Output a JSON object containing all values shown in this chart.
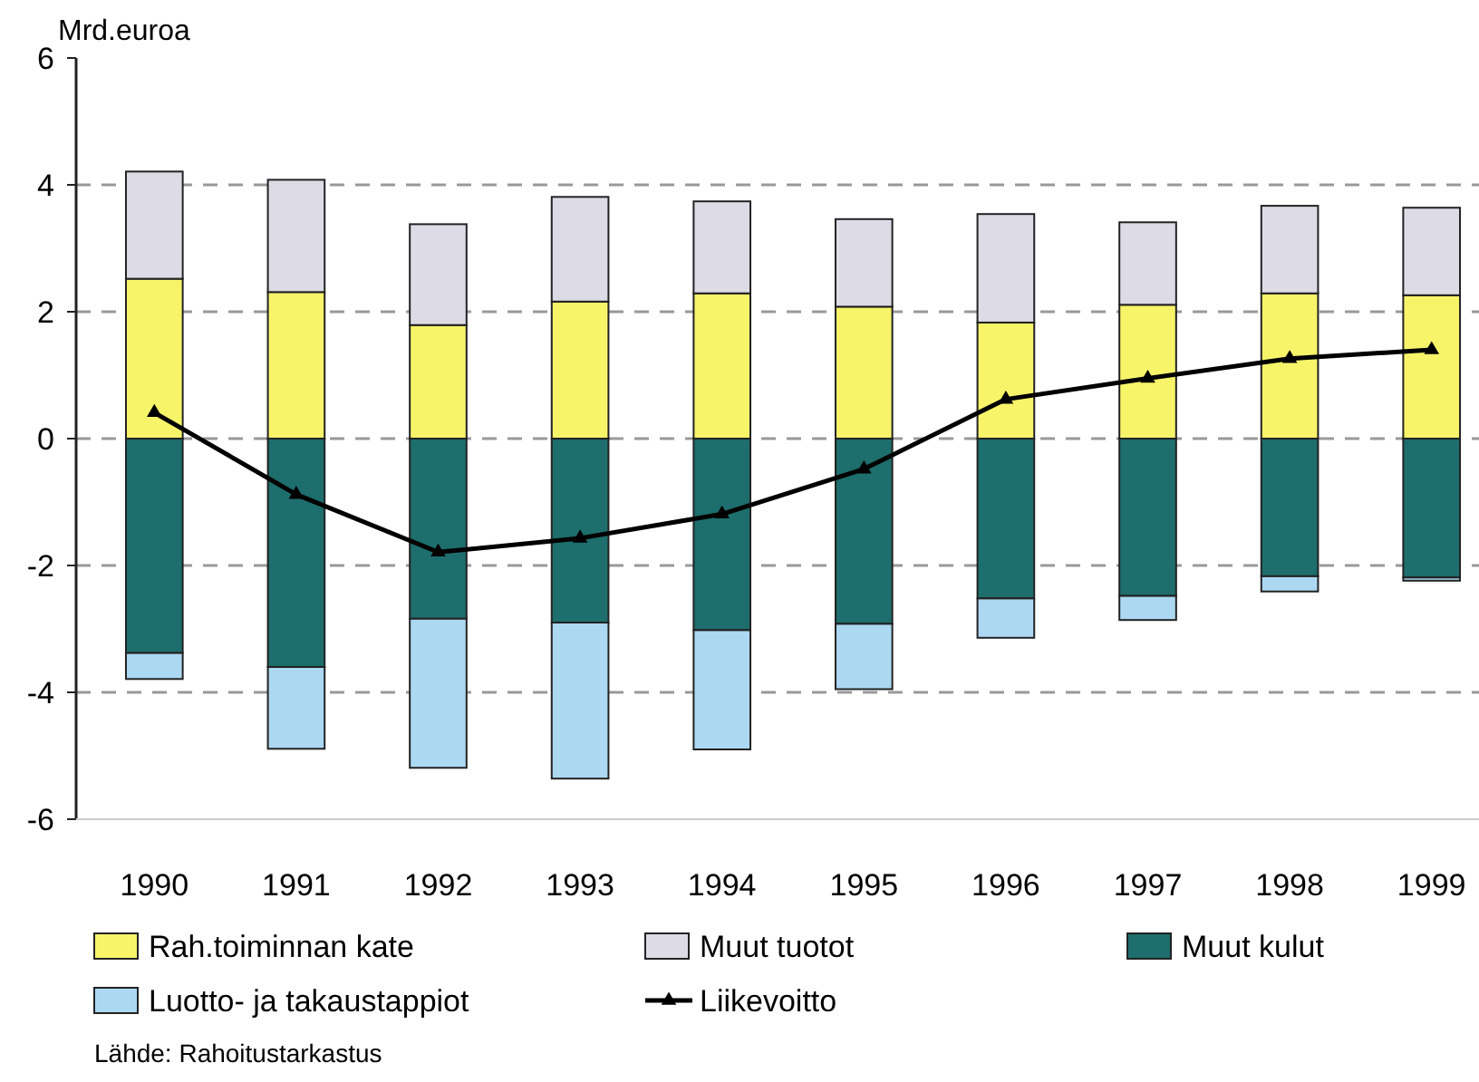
{
  "chart_data": {
    "type": "bar",
    "stacked": true,
    "ylabel": "Mrd.euroa",
    "categories": [
      "1990",
      "1991",
      "1992",
      "1993",
      "1994",
      "1995",
      "1996",
      "1997",
      "1998",
      "1999"
    ],
    "series": [
      {
        "name": "Rah.toiminnan kate",
        "color": "#f8f46a",
        "values": [
          2.52,
          2.31,
          1.79,
          2.16,
          2.29,
          2.08,
          1.83,
          2.11,
          2.29,
          2.26
        ]
      },
      {
        "name": "Muut tuotot",
        "color": "#dddce6",
        "values": [
          1.69,
          1.77,
          1.59,
          1.65,
          1.45,
          1.38,
          1.71,
          1.3,
          1.38,
          1.38
        ]
      },
      {
        "name": "Muut kulut",
        "color": "#1d6e6c",
        "values": [
          -3.38,
          -3.6,
          -2.84,
          -2.9,
          -3.02,
          -2.92,
          -2.52,
          -2.48,
          -2.17,
          -2.19
        ]
      },
      {
        "name": "Luotto- ja takaustappiot",
        "color": "#acd8f2",
        "values": [
          -0.41,
          -1.29,
          -2.35,
          -2.46,
          -1.88,
          -1.03,
          -0.62,
          -0.38,
          -0.24,
          -0.05
        ]
      },
      {
        "name": "Liikevoitto",
        "type": "line",
        "color": "#000000",
        "marker": "triangle",
        "values": [
          0.41,
          -0.88,
          -1.79,
          -1.57,
          -1.19,
          -0.48,
          0.62,
          0.95,
          1.26,
          1.4
        ]
      }
    ],
    "ylim": [
      -6,
      6
    ],
    "yticks": [
      -6,
      -4,
      -2,
      0,
      2,
      4,
      6
    ],
    "grid": "y",
    "legend": "bottom",
    "annotations": [
      "Lähde: Rahoitustarkastus"
    ]
  }
}
